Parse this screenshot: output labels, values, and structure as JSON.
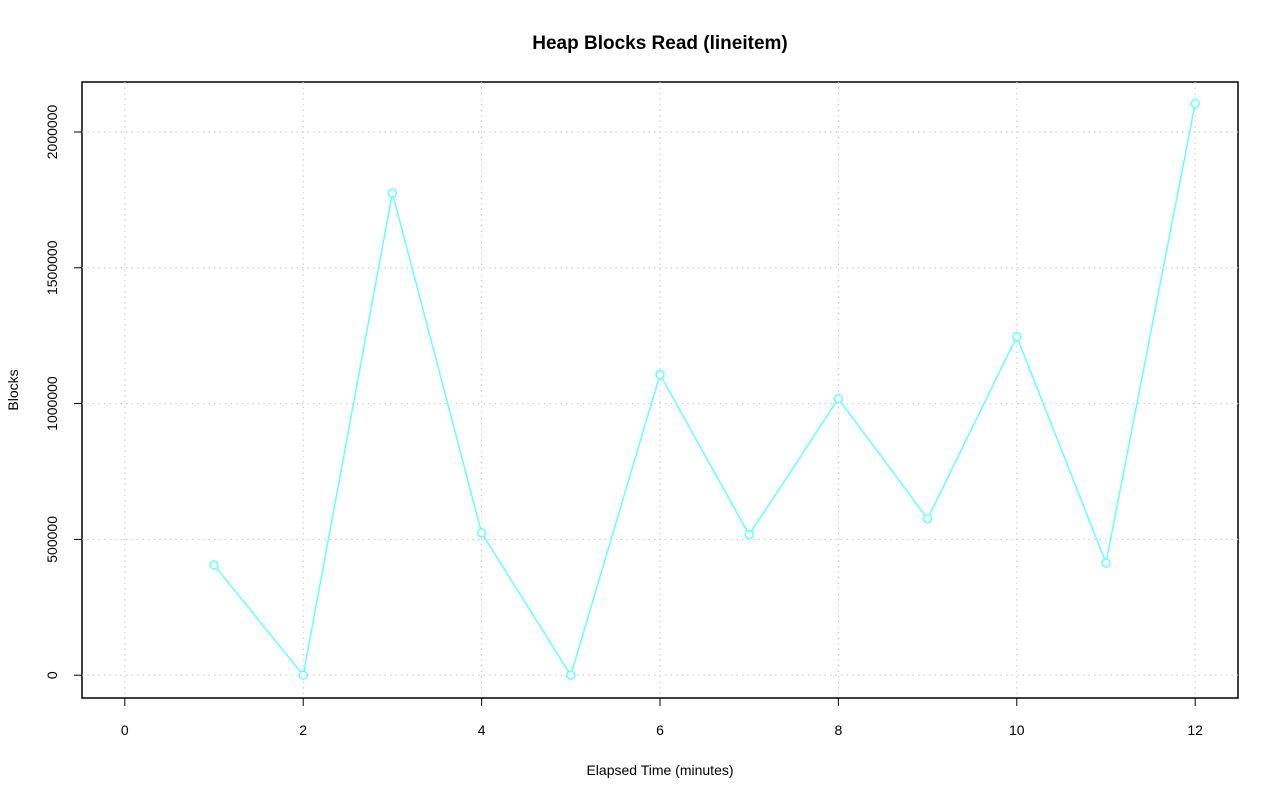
{
  "chart_data": {
    "type": "line",
    "title": "Heap Blocks Read (lineitem)",
    "x_label": "Elapsed Time (minutes)",
    "y_label": "Blocks",
    "x": [
      1,
      2,
      3,
      4,
      5,
      6,
      7,
      8,
      9,
      10,
      11,
      12
    ],
    "series": [
      {
        "color": "#66ffff",
        "values": [
          406000,
          0,
          1775000,
          524000,
          0,
          1107000,
          517000,
          1018000,
          576000,
          1247000,
          413000,
          2105000
        ]
      }
    ],
    "xlim": [
      -0.48,
      12.48
    ],
    "xticks": [
      0,
      2,
      4,
      6,
      8,
      10,
      12
    ],
    "ylim": [
      -84000,
      2184000
    ],
    "yticks": [
      0,
      500000,
      1000000,
      1500000,
      2000000
    ],
    "grid": true
  }
}
